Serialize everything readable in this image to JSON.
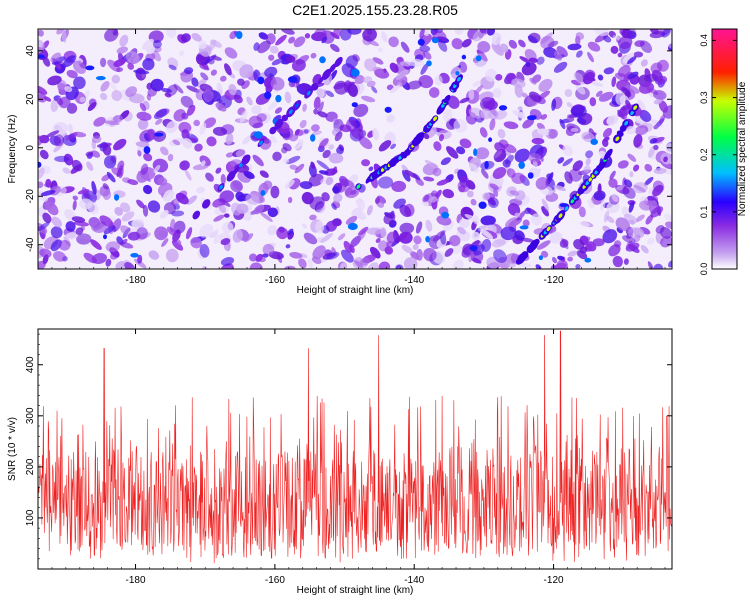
{
  "title": "C2E1.2025.155.23.28.R05",
  "chart_data": [
    {
      "type": "heatmap",
      "xlabel": "Height of straight line (km)",
      "ylabel": "Frequency (Hz)",
      "xlim": [
        -194,
        -103
      ],
      "ylim": [
        -50,
        49
      ],
      "xticks": [
        -180,
        -160,
        -140,
        -120
      ],
      "yticks": [
        40,
        20,
        0,
        -20,
        -40
      ],
      "colorbar": {
        "label": "Normalized spectral amplitude",
        "range": [
          0.0,
          0.42
        ],
        "ticks": [
          0.0,
          0.1,
          0.2,
          0.3,
          0.4
        ],
        "colors": [
          "#ffffff",
          "#8a2be2",
          "#0000ff",
          "#00bfff",
          "#00ff00",
          "#ffff00",
          "#ff0000",
          "#ff1493"
        ]
      },
      "ridges": [
        {
          "x": [
            -148,
            -141,
            -137,
            -133
          ],
          "y": [
            -16,
            -2,
            12,
            31
          ]
        },
        {
          "x": [
            -125,
            -119,
            -113,
            -107
          ],
          "y": [
            -47,
            -28,
            -7,
            23
          ]
        },
        {
          "x": [
            -172,
            -162,
            -150
          ],
          "y": [
            -30,
            2,
            38
          ]
        }
      ]
    },
    {
      "type": "line",
      "xlabel": "Height of straight line (km)",
      "ylabel": "SNR (10 * v/v)",
      "xlim": [
        -194,
        -103
      ],
      "ylim": [
        0,
        470
      ],
      "xticks": [
        -180,
        -160,
        -140,
        -120
      ],
      "yticks": [
        100,
        200,
        300,
        400
      ],
      "color": "#ee2222",
      "baseline": 130,
      "spread": 95,
      "peaks": [
        {
          "x": -184.5,
          "y": 432
        },
        {
          "x": -155.2,
          "y": 432
        },
        {
          "x": -145.1,
          "y": 458
        },
        {
          "x": -121.3,
          "y": 458
        },
        {
          "x": -119.0,
          "y": 466
        }
      ]
    }
  ]
}
